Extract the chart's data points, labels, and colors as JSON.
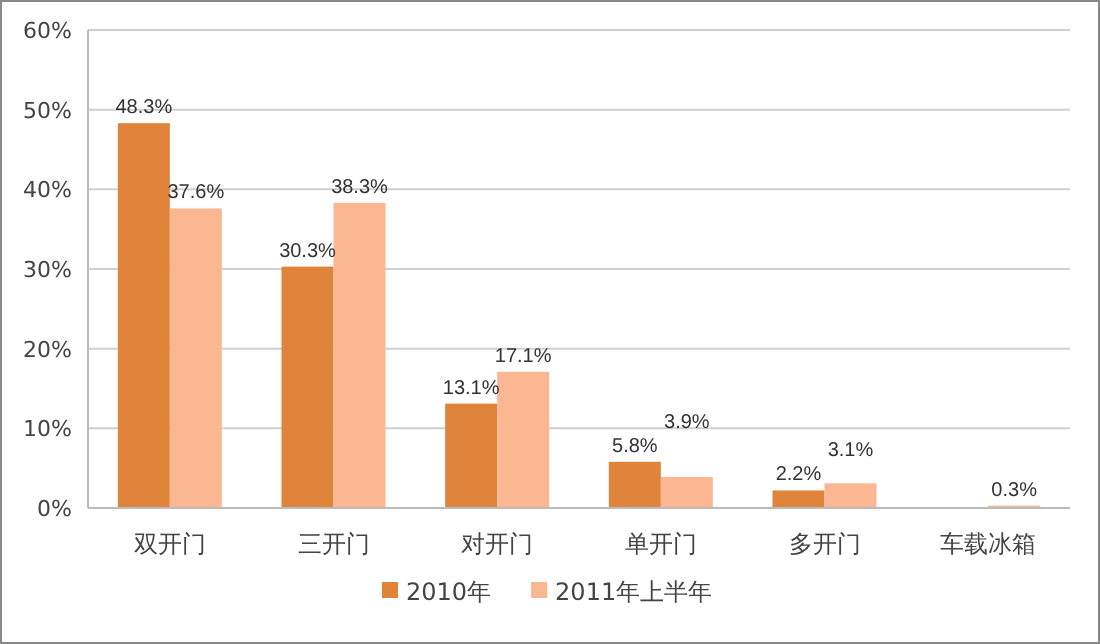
{
  "chart_data": {
    "type": "bar",
    "categories": [
      "双开门",
      "三开门",
      "对开门",
      "单开门",
      "多开门",
      "车载冰箱"
    ],
    "series": [
      {
        "name": "2010年",
        "color": "#e0843c",
        "values": [
          48.3,
          30.3,
          13.1,
          5.8,
          2.2,
          null
        ],
        "value_labels": [
          "48.3%",
          "30.3%",
          "13.1%",
          "5.8%",
          "2.2%",
          null
        ]
      },
      {
        "name": "2011年上半年",
        "color": "#fbb792",
        "values": [
          37.6,
          38.3,
          17.1,
          3.9,
          3.1,
          0.3
        ],
        "value_labels": [
          "37.6%",
          "38.3%",
          "17.1%",
          "3.9%",
          "3.1%",
          "0.3%"
        ]
      }
    ],
    "ylim": [
      0,
      60
    ],
    "yticks": [
      {
        "value": 0,
        "label": "0%"
      },
      {
        "value": 10,
        "label": "10%"
      },
      {
        "value": 20,
        "label": "20%"
      },
      {
        "value": 30,
        "label": "30%"
      },
      {
        "value": 40,
        "label": "40%"
      },
      {
        "value": 50,
        "label": "50%"
      },
      {
        "value": 60,
        "label": "60%"
      }
    ],
    "grid": "y",
    "legend": "bottom"
  }
}
